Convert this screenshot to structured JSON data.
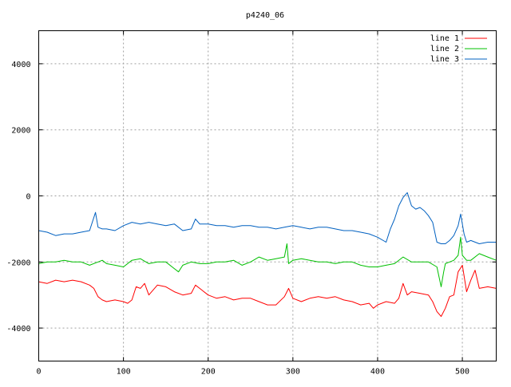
{
  "chart_data": {
    "type": "line",
    "title": "p4240_06",
    "xlabel": "",
    "ylabel": "",
    "xlim": [
      0,
      540
    ],
    "ylim": [
      -5000,
      5000
    ],
    "xticks": [
      0,
      100,
      200,
      300,
      400,
      500
    ],
    "yticks": [
      -4000,
      -2000,
      0,
      2000,
      4000
    ],
    "grid": true,
    "legend_position": "top-right",
    "series": [
      {
        "name": "line 1",
        "color": "#ff0000",
        "x": [
          0,
          10,
          20,
          30,
          40,
          50,
          60,
          65,
          70,
          75,
          80,
          90,
          100,
          105,
          110,
          115,
          120,
          125,
          130,
          140,
          150,
          160,
          170,
          180,
          185,
          190,
          200,
          210,
          220,
          230,
          240,
          250,
          260,
          270,
          280,
          290,
          295,
          300,
          310,
          320,
          330,
          340,
          350,
          360,
          370,
          380,
          390,
          395,
          400,
          410,
          420,
          425,
          430,
          435,
          440,
          450,
          460,
          465,
          470,
          475,
          480,
          485,
          490,
          495,
          500,
          505,
          510,
          515,
          520,
          530,
          540
        ],
        "y": [
          -2600,
          -2650,
          -2550,
          -2600,
          -2550,
          -2600,
          -2700,
          -2800,
          -3050,
          -3150,
          -3200,
          -3150,
          -3200,
          -3250,
          -3150,
          -2750,
          -2800,
          -2650,
          -3000,
          -2700,
          -2750,
          -2900,
          -3000,
          -2950,
          -2700,
          -2800,
          -3000,
          -3100,
          -3050,
          -3150,
          -3100,
          -3100,
          -3200,
          -3300,
          -3300,
          -3050,
          -2800,
          -3100,
          -3200,
          -3100,
          -3050,
          -3100,
          -3050,
          -3150,
          -3200,
          -3300,
          -3250,
          -3400,
          -3300,
          -3200,
          -3250,
          -3100,
          -2650,
          -3000,
          -2900,
          -2950,
          -3000,
          -3200,
          -3500,
          -3650,
          -3400,
          -3050,
          -3000,
          -2300,
          -2100,
          -2900,
          -2550,
          -2250,
          -2800,
          -2750,
          -2800
        ]
      },
      {
        "name": "line 2",
        "color": "#00c000",
        "x": [
          0,
          10,
          20,
          30,
          40,
          50,
          60,
          70,
          75,
          80,
          90,
          100,
          110,
          120,
          130,
          140,
          150,
          160,
          165,
          170,
          180,
          190,
          200,
          210,
          220,
          230,
          240,
          250,
          260,
          270,
          280,
          290,
          293,
          295,
          300,
          310,
          320,
          330,
          340,
          350,
          360,
          370,
          380,
          390,
          400,
          410,
          420,
          430,
          440,
          450,
          460,
          470,
          475,
          478,
          480,
          485,
          490,
          495,
          498,
          500,
          505,
          510,
          520,
          530,
          540
        ],
        "y": [
          -2050,
          -2000,
          -2000,
          -1950,
          -2000,
          -2000,
          -2100,
          -2000,
          -1950,
          -2050,
          -2100,
          -2150,
          -1950,
          -1900,
          -2050,
          -2000,
          -2000,
          -2200,
          -2300,
          -2100,
          -2000,
          -2050,
          -2050,
          -2000,
          -2000,
          -1950,
          -2100,
          -2000,
          -1850,
          -1950,
          -1900,
          -1850,
          -1450,
          -2050,
          -1950,
          -1900,
          -1950,
          -2000,
          -2000,
          -2050,
          -2000,
          -2000,
          -2100,
          -2150,
          -2150,
          -2100,
          -2050,
          -1850,
          -2000,
          -2000,
          -2000,
          -2150,
          -2750,
          -2300,
          -2050,
          -2000,
          -1950,
          -1800,
          -1250,
          -1800,
          -1950,
          -1950,
          -1750,
          -1850,
          -1950
        ]
      },
      {
        "name": "line 3",
        "color": "#0060c0",
        "x": [
          0,
          10,
          20,
          30,
          40,
          50,
          60,
          67,
          70,
          75,
          80,
          90,
          100,
          110,
          120,
          130,
          140,
          150,
          160,
          170,
          180,
          185,
          190,
          200,
          210,
          220,
          230,
          240,
          250,
          260,
          270,
          280,
          290,
          300,
          310,
          320,
          330,
          340,
          350,
          360,
          370,
          380,
          390,
          400,
          410,
          415,
          420,
          425,
          430,
          435,
          440,
          445,
          450,
          455,
          460,
          465,
          470,
          475,
          480,
          485,
          490,
          495,
          498,
          502,
          505,
          510,
          520,
          530,
          540
        ],
        "y": [
          -1050,
          -1100,
          -1200,
          -1150,
          -1150,
          -1100,
          -1050,
          -500,
          -950,
          -1000,
          -1000,
          -1050,
          -900,
          -800,
          -850,
          -800,
          -850,
          -900,
          -850,
          -1050,
          -1000,
          -700,
          -850,
          -850,
          -900,
          -900,
          -950,
          -900,
          -900,
          -950,
          -950,
          -1000,
          -950,
          -900,
          -950,
          -1000,
          -950,
          -950,
          -1000,
          -1050,
          -1050,
          -1100,
          -1150,
          -1250,
          -1400,
          -1000,
          -700,
          -300,
          -50,
          100,
          -300,
          -400,
          -350,
          -450,
          -600,
          -800,
          -1400,
          -1450,
          -1450,
          -1350,
          -1200,
          -900,
          -550,
          -1150,
          -1400,
          -1350,
          -1450,
          -1400,
          -1400
        ]
      }
    ]
  }
}
